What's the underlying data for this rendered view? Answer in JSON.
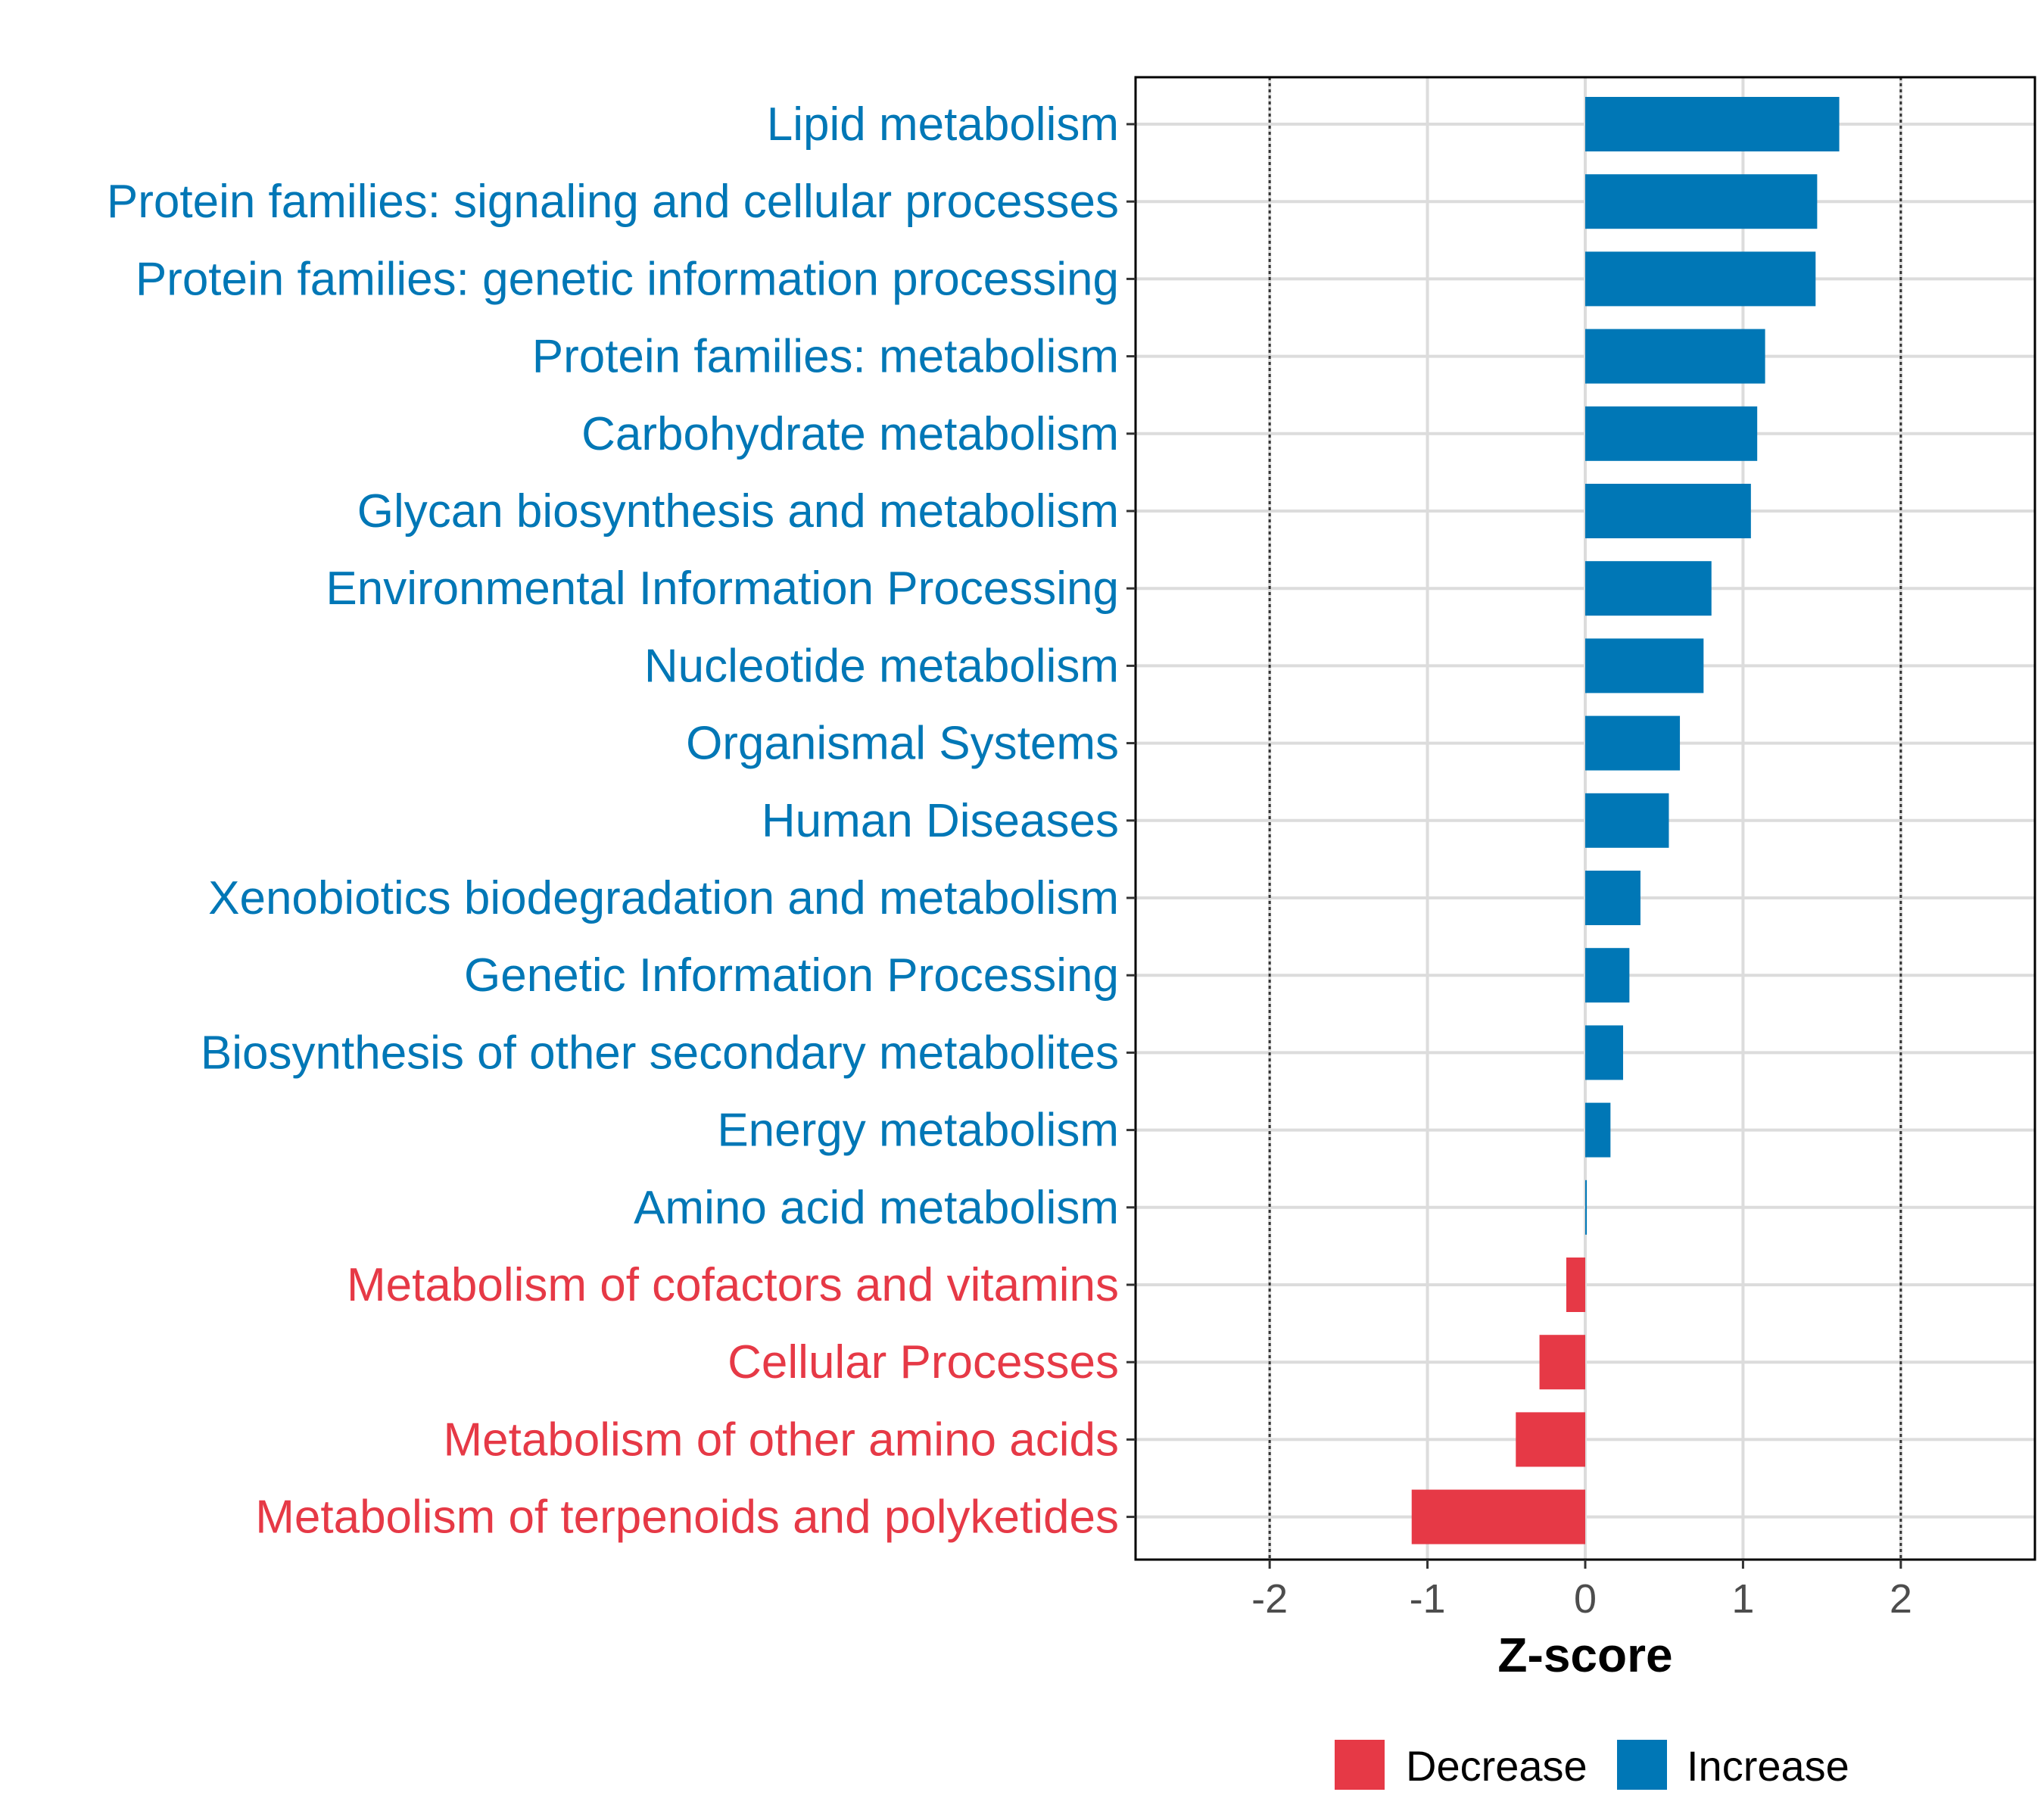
{
  "chart_data": {
    "type": "bar",
    "orientation": "horizontal",
    "categories": [
      "Lipid metabolism",
      "Protein families: signaling and cellular processes",
      "Protein families: genetic information processing",
      "Protein families: metabolism",
      "Carbohydrate metabolism",
      "Glycan biosynthesis and metabolism",
      "Environmental Information Processing",
      "Nucleotide metabolism",
      "Organismal Systems",
      "Human Diseases",
      "Xenobiotics biodegradation and metabolism",
      "Genetic Information Processing",
      "Biosynthesis of other secondary metabolites",
      "Energy metabolism",
      "Amino acid metabolism",
      "Metabolism of cofactors and vitamins",
      "Cellular Processes",
      "Metabolism of other amino acids",
      "Metabolism of terpenoids and polyketides"
    ],
    "values": [
      1.61,
      1.47,
      1.46,
      1.14,
      1.09,
      1.05,
      0.8,
      0.75,
      0.6,
      0.53,
      0.35,
      0.28,
      0.24,
      0.16,
      0.01,
      -0.12,
      -0.29,
      -0.44,
      -1.1
    ],
    "groups": [
      "Increase",
      "Increase",
      "Increase",
      "Increase",
      "Increase",
      "Increase",
      "Increase",
      "Increase",
      "Increase",
      "Increase",
      "Increase",
      "Increase",
      "Increase",
      "Increase",
      "Increase",
      "Decrease",
      "Decrease",
      "Decrease",
      "Decrease"
    ],
    "xlabel": "Z-score",
    "ylabel": "",
    "xlim": [
      -2.85,
      2.85
    ],
    "xticks": [
      -2,
      -1,
      0,
      1,
      2
    ],
    "xtick_labels": [
      "-2",
      "-1",
      "0",
      "1",
      "2"
    ],
    "reference_lines": [
      -2,
      2
    ],
    "grid": true,
    "legend": {
      "position": "bottom",
      "entries": [
        {
          "label": "Decrease",
          "color": "#E63946"
        },
        {
          "label": "Increase",
          "color": "#0077B6"
        }
      ]
    },
    "colors": {
      "Increase": "#0077B6",
      "Decrease": "#E63946"
    }
  }
}
